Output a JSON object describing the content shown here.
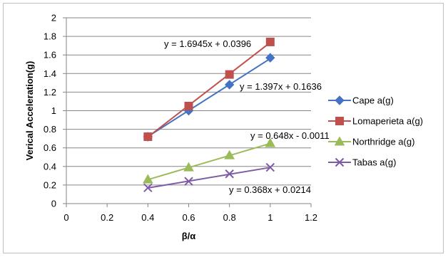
{
  "chart_data": {
    "type": "scatter",
    "title": "",
    "xlabel": "β/α",
    "ylabel": "Verical Acceleration(g)",
    "xlim": [
      0,
      1.2
    ],
    "ylim": [
      0,
      2
    ],
    "x_ticks": [
      "0",
      "0.2",
      "0.4",
      "0.6",
      "0.8",
      "1",
      "1.2"
    ],
    "y_ticks": [
      "0",
      "0.2",
      "0.4",
      "0.6",
      "0.8",
      "1",
      "1.2",
      "1.4",
      "1.6",
      "1.8",
      "2"
    ],
    "grid": "horizontal",
    "legend_position": "right",
    "series": [
      {
        "name": "Cape a(g)",
        "color": "#4472C4",
        "marker": "diamond",
        "x": [
          0.4,
          0.6,
          0.8,
          1.0
        ],
        "y": [
          0.72,
          1.0,
          1.28,
          1.57
        ],
        "trendline": {
          "slope": 1.397,
          "intercept": 0.1636,
          "equation": "y = 1.397x + 0.1636"
        }
      },
      {
        "name": "Lomaperieta a(g)",
        "color": "#C0504D",
        "marker": "square",
        "x": [
          0.4,
          0.6,
          0.8,
          1.0
        ],
        "y": [
          0.72,
          1.05,
          1.39,
          1.74
        ],
        "trendline": {
          "slope": 1.6945,
          "intercept": 0.0396,
          "equation": "y = 1.6945x + 0.0396"
        }
      },
      {
        "name": "Northridge a(g)",
        "color": "#9BBB59",
        "marker": "triangle",
        "x": [
          0.4,
          0.6,
          0.8,
          1.0
        ],
        "y": [
          0.26,
          0.39,
          0.52,
          0.65
        ],
        "trendline": {
          "slope": 0.648,
          "intercept": -0.0011,
          "equation": "y = 0.648x - 0.0011"
        }
      },
      {
        "name": "Tabas a(g)",
        "color": "#7F5BA6",
        "marker": "x",
        "x": [
          0.4,
          0.6,
          0.8,
          1.0
        ],
        "y": [
          0.17,
          0.24,
          0.32,
          0.39
        ],
        "trendline": {
          "slope": 0.368,
          "intercept": 0.0214,
          "equation": "y = 0.368x + 0.0214"
        }
      }
    ]
  }
}
